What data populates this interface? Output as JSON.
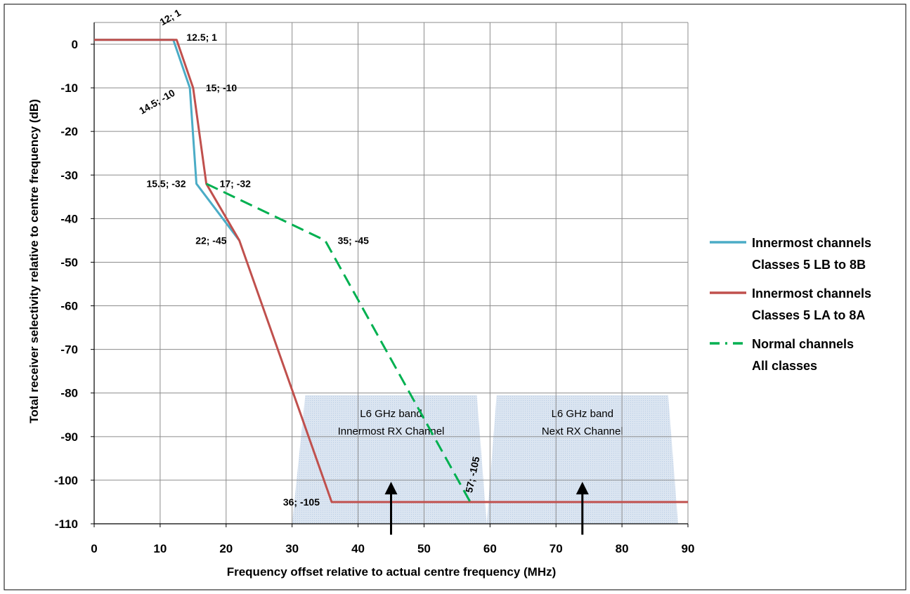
{
  "chart_data": {
    "type": "line",
    "title": "",
    "xlabel": "Frequency offset relative to actual centre frequency (MHz)",
    "ylabel": "Total receiver selectivity relative to centre frequency (dB)",
    "xlim": [
      0,
      90
    ],
    "ylim": [
      -110,
      5
    ],
    "x_ticks": [
      0,
      10,
      20,
      30,
      40,
      50,
      60,
      70,
      80,
      90
    ],
    "y_ticks": [
      0,
      -10,
      -20,
      -30,
      -40,
      -50,
      -60,
      -70,
      -80,
      -90,
      -100,
      -110
    ],
    "x_tick_labels": [
      "0",
      "10",
      "20",
      "30",
      "40",
      "50",
      "60",
      "70",
      "80",
      "90"
    ],
    "y_tick_labels": [
      "0",
      "-10",
      "-20",
      "-30",
      "-40",
      "-50",
      "-60",
      "-70",
      "-80",
      "-90",
      "-100",
      "-110"
    ],
    "grid": true,
    "legend_position": "right",
    "series": [
      {
        "name": "Innermost channels Classes 5 LB to 8B",
        "legend_lines": [
          "Innermost channels",
          "Classes 5 LB to 8B"
        ],
        "color": "#4BACC6",
        "style": "solid",
        "points": [
          [
            0,
            1
          ],
          [
            12,
            1
          ],
          [
            14.5,
            -10
          ],
          [
            15.5,
            -32
          ],
          [
            22,
            -45
          ]
        ]
      },
      {
        "name": "Innermost channels Classes 5 LA to 8A",
        "legend_lines": [
          "Innermost channels",
          "Classes 5 LA to 8A"
        ],
        "color": "#C0504D",
        "style": "solid",
        "points": [
          [
            0,
            1
          ],
          [
            12.5,
            1
          ],
          [
            15,
            -10
          ],
          [
            17,
            -32
          ],
          [
            22,
            -45
          ],
          [
            36,
            -105
          ],
          [
            90,
            -105
          ]
        ]
      },
      {
        "name": "Normal channels All classes",
        "legend_lines": [
          "Normal channels",
          "All classes"
        ],
        "color": "#00B050",
        "style": "dashed",
        "points": [
          [
            17,
            -32
          ],
          [
            35,
            -45
          ],
          [
            57,
            -105
          ]
        ]
      }
    ],
    "annotations": [
      {
        "text": "12; 1",
        "x": 12,
        "y": 1
      },
      {
        "text": "12.5; 1",
        "x": 12.5,
        "y": 1
      },
      {
        "text": "14.5; -10",
        "x": 14.5,
        "y": -10
      },
      {
        "text": "15; -10",
        "x": 15,
        "y": -10
      },
      {
        "text": "15.5; -32",
        "x": 15.5,
        "y": -32
      },
      {
        "text": "17; -32",
        "x": 17,
        "y": -32
      },
      {
        "text": "22; -45",
        "x": 22,
        "y": -45
      },
      {
        "text": "35; -45",
        "x": 35,
        "y": -45
      },
      {
        "text": "57; -105",
        "x": 57,
        "y": -105
      },
      {
        "text": "36; -105",
        "x": 36,
        "y": -105
      }
    ],
    "bands": [
      {
        "lines": [
          "L6 GHz band",
          "Innermost RX Channel"
        ],
        "center": 45,
        "polygon": [
          [
            30,
            -110
          ],
          [
            32,
            -80.5
          ],
          [
            58,
            -80.5
          ],
          [
            59.5,
            -110
          ]
        ]
      },
      {
        "lines": [
          "L6 GHz band",
          "Next RX Channel"
        ],
        "center": 74,
        "polygon": [
          [
            59.5,
            -110
          ],
          [
            61,
            -80.5
          ],
          [
            87,
            -80.5
          ],
          [
            88.5,
            -110
          ]
        ]
      }
    ],
    "arrows": [
      {
        "x": 45,
        "from_y": -112.5,
        "to_y": -101
      },
      {
        "x": 74,
        "from_y": -112.5,
        "to_y": -101
      }
    ]
  }
}
